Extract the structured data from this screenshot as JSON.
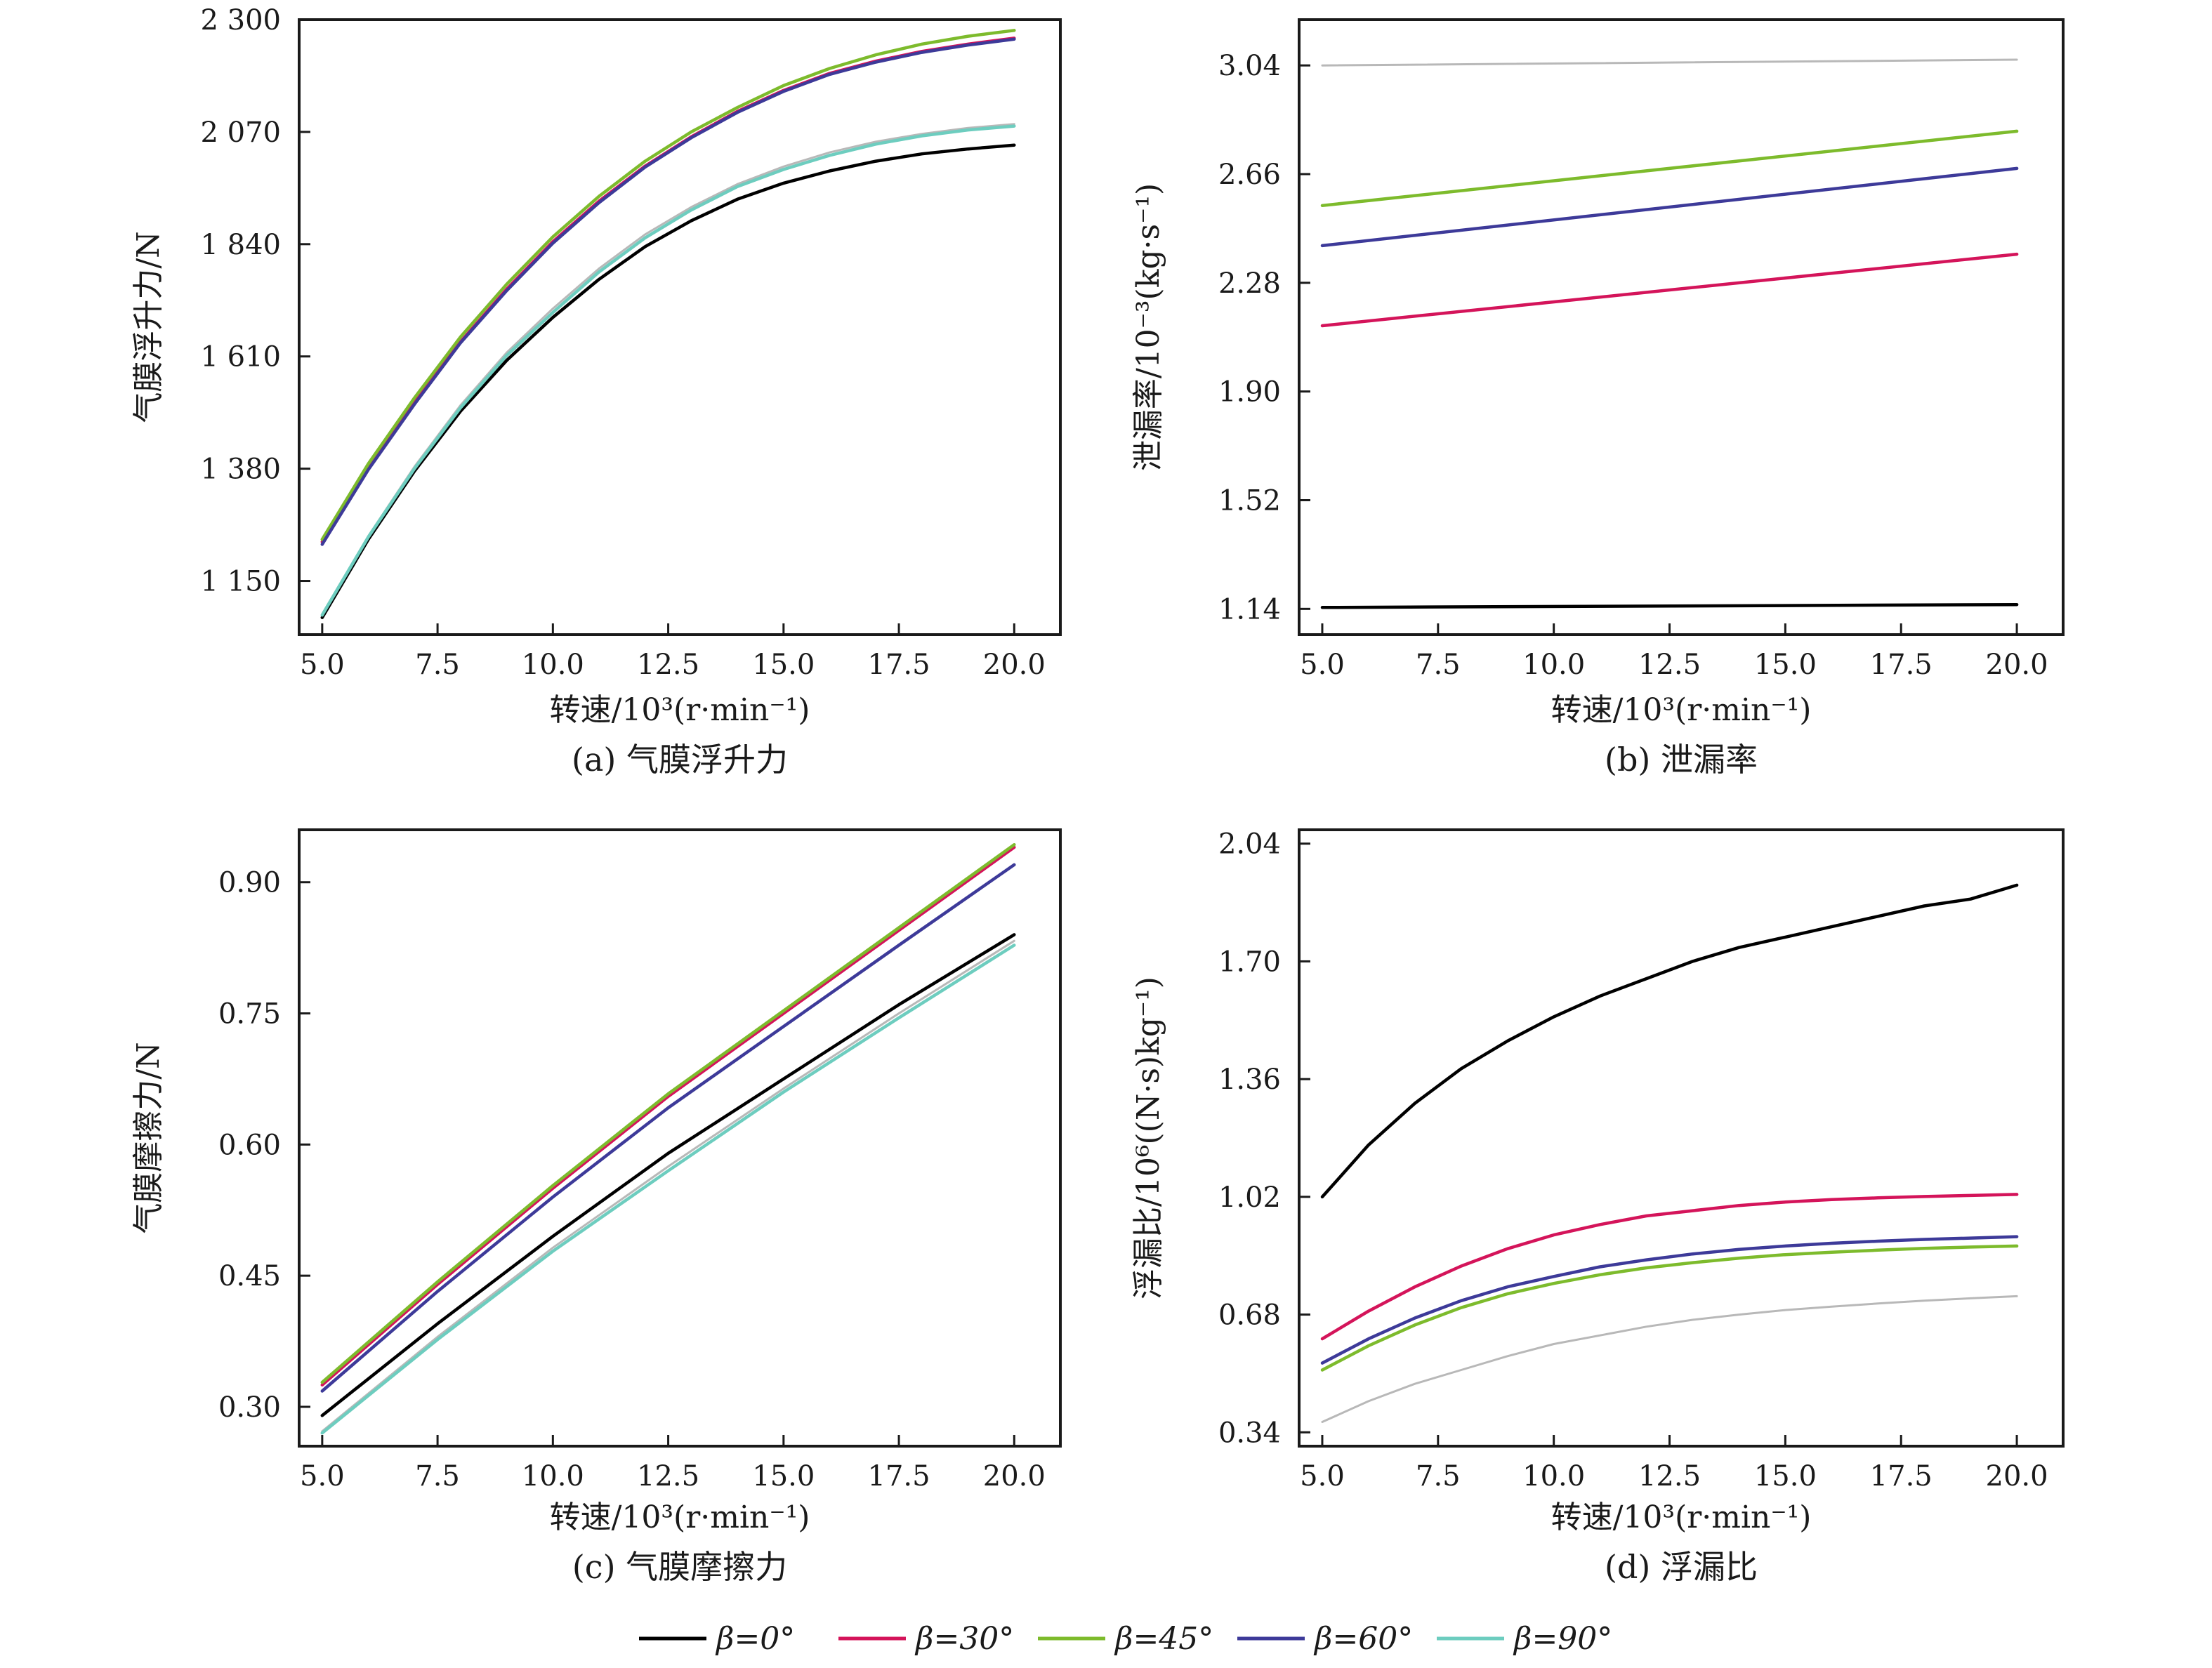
{
  "colors": {
    "beta0": "#000000",
    "beta30": "#d4145a",
    "beta45": "#7dbb2c",
    "beta60": "#3d3a99",
    "beta90": "#6dcdbf",
    "gray": "#b8b8b8"
  },
  "legend": {
    "items": [
      {
        "label": "β=0°",
        "color_key": "beta0"
      },
      {
        "label": "β=30°",
        "color_key": "beta30"
      },
      {
        "label": "β=45°",
        "color_key": "beta45"
      },
      {
        "label": "β=60°",
        "color_key": "beta60"
      },
      {
        "label": "β=90°",
        "color_key": "beta90"
      }
    ]
  },
  "chart_data": [
    {
      "id": "a",
      "type": "line",
      "caption": "(a) 气膜浮升力",
      "xlabel": "转速/10³(r·min⁻¹)",
      "ylabel": "气膜浮升力/N",
      "xlim": [
        4.5,
        21.0
      ],
      "ylim": [
        1040,
        2300
      ],
      "xticks": [
        5.0,
        7.5,
        10.0,
        12.5,
        15.0,
        17.5,
        20.0
      ],
      "xtick_labels": [
        "5.0",
        "7.5",
        "10.0",
        "12.5",
        "15.0",
        "17.5",
        "20.0"
      ],
      "yticks": [
        1150,
        1380,
        1610,
        1840,
        2070,
        2300
      ],
      "ytick_labels": [
        "1 150",
        "1 380",
        "1 610",
        "1 840",
        "2 070",
        "2 300"
      ],
      "x": [
        5,
        6,
        7,
        8,
        9,
        10,
        11,
        12,
        13,
        14,
        15,
        16,
        17,
        18,
        19,
        20
      ],
      "series": [
        {
          "name": "β=0°",
          "color_key": "beta0",
          "values": [
            1075,
            1235,
            1375,
            1498,
            1602,
            1690,
            1768,
            1835,
            1888,
            1932,
            1965,
            1990,
            2010,
            2025,
            2035,
            2043
          ]
        },
        {
          "name": "β=30°",
          "color_key": "beta30",
          "values": [
            1230,
            1380,
            1515,
            1640,
            1748,
            1845,
            1928,
            2000,
            2060,
            2112,
            2155,
            2190,
            2215,
            2235,
            2250,
            2262
          ]
        },
        {
          "name": "β=45°",
          "color_key": "beta45",
          "values": [
            1235,
            1390,
            1525,
            1650,
            1758,
            1855,
            1938,
            2010,
            2070,
            2120,
            2165,
            2200,
            2228,
            2250,
            2266,
            2278
          ]
        },
        {
          "name": "β=60°",
          "color_key": "beta60",
          "values": [
            1225,
            1378,
            1512,
            1638,
            1745,
            1842,
            1925,
            1998,
            2058,
            2110,
            2153,
            2188,
            2213,
            2233,
            2248,
            2260
          ]
        },
        {
          "name": "β=90°",
          "color_key": "beta90",
          "values": [
            1080,
            1240,
            1380,
            1505,
            1612,
            1700,
            1783,
            1853,
            1910,
            1958,
            1993,
            2022,
            2045,
            2062,
            2074,
            2082
          ]
        },
        {
          "name": "",
          "color_key": "gray",
          "values": [
            1082,
            1242,
            1384,
            1510,
            1618,
            1708,
            1790,
            1860,
            1916,
            1963,
            1999,
            2028,
            2050,
            2066,
            2078,
            2086
          ]
        }
      ]
    },
    {
      "id": "b",
      "type": "line",
      "caption": "(b) 泄漏率",
      "xlabel": "转速/10³(r·min⁻¹)",
      "ylabel": "泄漏率/10⁻³(kg·s⁻¹)",
      "xlim": [
        4.5,
        21.0
      ],
      "ylim": [
        1.05,
        3.2
      ],
      "xticks": [
        5.0,
        7.5,
        10.0,
        12.5,
        15.0,
        17.5,
        20.0
      ],
      "xtick_labels": [
        "5.0",
        "7.5",
        "10.0",
        "12.5",
        "15.0",
        "17.5",
        "20.0"
      ],
      "yticks": [
        1.14,
        1.52,
        1.9,
        2.28,
        2.66,
        3.04
      ],
      "ytick_labels": [
        "1.14",
        "1.52",
        "1.90",
        "2.28",
        "2.66",
        "3.04"
      ],
      "x": [
        5,
        20
      ],
      "series": [
        {
          "name": "β=0°",
          "color_key": "beta0",
          "values": [
            1.145,
            1.155
          ]
        },
        {
          "name": "β=30°",
          "color_key": "beta30",
          "values": [
            2.13,
            2.38
          ]
        },
        {
          "name": "β=45°",
          "color_key": "beta45",
          "values": [
            2.55,
            2.81
          ]
        },
        {
          "name": "β=60°",
          "color_key": "beta60",
          "values": [
            2.41,
            2.68
          ]
        },
        {
          "name": "",
          "color_key": "gray",
          "values": [
            3.04,
            3.06
          ]
        }
      ]
    },
    {
      "id": "c",
      "type": "line",
      "caption": "(c) 气膜摩擦力",
      "xlabel": "转速/10³(r·min⁻¹)",
      "ylabel": "气膜摩擦力/N",
      "xlim": [
        4.5,
        21.0
      ],
      "ylim": [
        0.255,
        0.96
      ],
      "xticks": [
        5.0,
        7.5,
        10.0,
        12.5,
        15.0,
        17.5,
        20.0
      ],
      "xtick_labels": [
        "5.0",
        "7.5",
        "10.0",
        "12.5",
        "15.0",
        "17.5",
        "20.0"
      ],
      "yticks": [
        0.3,
        0.45,
        0.6,
        0.75,
        0.9
      ],
      "ytick_labels": [
        "0.30",
        "0.45",
        "0.60",
        "0.75",
        "0.90"
      ],
      "x": [
        5,
        7.5,
        10,
        12.5,
        15,
        17.5,
        20
      ],
      "series": [
        {
          "name": "β=0°",
          "color_key": "beta0",
          "values": [
            0.29,
            0.395,
            0.495,
            0.59,
            0.675,
            0.76,
            0.84
          ]
        },
        {
          "name": "β=30°",
          "color_key": "beta30",
          "values": [
            0.325,
            0.44,
            0.55,
            0.655,
            0.75,
            0.845,
            0.94
          ]
        },
        {
          "name": "β=45°",
          "color_key": "beta45",
          "values": [
            0.328,
            0.443,
            0.553,
            0.658,
            0.753,
            0.848,
            0.943
          ]
        },
        {
          "name": "β=60°",
          "color_key": "beta60",
          "values": [
            0.318,
            0.432,
            0.54,
            0.642,
            0.735,
            0.828,
            0.92
          ]
        },
        {
          "name": "β=90°",
          "color_key": "beta90",
          "values": [
            0.27,
            0.377,
            0.478,
            0.57,
            0.66,
            0.745,
            0.828
          ]
        },
        {
          "name": "",
          "color_key": "gray",
          "values": [
            0.272,
            0.38,
            0.482,
            0.575,
            0.664,
            0.75,
            0.833
          ]
        }
      ]
    },
    {
      "id": "d",
      "type": "line",
      "caption": "(d) 浮漏比",
      "xlabel": "转速/10³(r·min⁻¹)",
      "ylabel": "浮漏比/10⁶((N·s)kg⁻¹)",
      "xlim": [
        4.5,
        21.0
      ],
      "ylim": [
        0.3,
        2.08
      ],
      "xticks": [
        5.0,
        7.5,
        10.0,
        12.5,
        15.0,
        17.5,
        20.0
      ],
      "xtick_labels": [
        "5.0",
        "7.5",
        "10.0",
        "12.5",
        "15.0",
        "17.5",
        "20.0"
      ],
      "yticks": [
        0.34,
        0.68,
        1.02,
        1.36,
        1.7,
        2.04
      ],
      "ytick_labels": [
        "0.34",
        "0.68",
        "1.02",
        "1.36",
        "1.70",
        "2.04"
      ],
      "x": [
        5,
        6,
        7,
        8,
        9,
        10,
        11,
        12,
        13,
        14,
        15,
        16,
        17,
        18,
        19,
        20
      ],
      "series": [
        {
          "name": "β=0°",
          "color_key": "beta0",
          "values": [
            1.02,
            1.17,
            1.29,
            1.39,
            1.47,
            1.54,
            1.6,
            1.65,
            1.7,
            1.74,
            1.77,
            1.8,
            1.83,
            1.86,
            1.88,
            1.92
          ]
        },
        {
          "name": "β=30°",
          "color_key": "beta30",
          "values": [
            0.61,
            0.69,
            0.76,
            0.82,
            0.87,
            0.91,
            0.94,
            0.965,
            0.98,
            0.995,
            1.005,
            1.012,
            1.017,
            1.021,
            1.024,
            1.027
          ]
        },
        {
          "name": "β=45°",
          "color_key": "beta45",
          "values": [
            0.52,
            0.59,
            0.65,
            0.7,
            0.74,
            0.77,
            0.795,
            0.815,
            0.83,
            0.843,
            0.853,
            0.86,
            0.866,
            0.871,
            0.875,
            0.878
          ]
        },
        {
          "name": "β=60°",
          "color_key": "beta60",
          "values": [
            0.54,
            0.61,
            0.67,
            0.72,
            0.76,
            0.79,
            0.818,
            0.838,
            0.855,
            0.868,
            0.878,
            0.886,
            0.892,
            0.897,
            0.901,
            0.905
          ]
        },
        {
          "name": "",
          "color_key": "gray",
          "values": [
            0.37,
            0.43,
            0.48,
            0.52,
            0.56,
            0.595,
            0.62,
            0.645,
            0.665,
            0.68,
            0.693,
            0.703,
            0.712,
            0.72,
            0.727,
            0.733
          ]
        }
      ]
    }
  ]
}
